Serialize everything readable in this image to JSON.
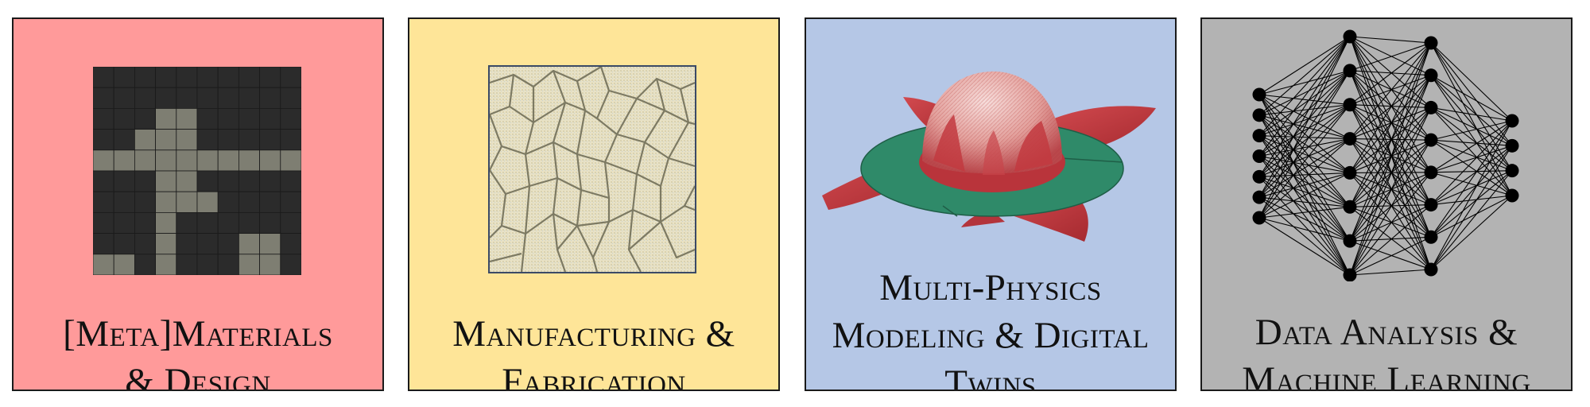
{
  "panels": [
    {
      "id": "meta-materials",
      "bg": "#ff9a9a",
      "caption": [
        "[Meta]Materials",
        "& Design"
      ],
      "icon": "pixel-grid-metamaterial-icon"
    },
    {
      "id": "manufacturing",
      "bg": "#fee598",
      "caption": [
        "Manufacturing &",
        "Fabrication"
      ],
      "icon": "voronoi-fabrication-texture-icon"
    },
    {
      "id": "multiphysics",
      "bg": "#b5c7e6",
      "caption": [
        "Multi-Physics",
        "Modeling & Digital",
        "Twins"
      ],
      "icon": "dome-simulation-icon"
    },
    {
      "id": "data-analysis",
      "bg": "#b3b3b3",
      "caption": [
        "Data Analysis &",
        "Machine Learning"
      ],
      "icon": "neural-network-icon"
    }
  ],
  "colors": {
    "grid_dark": "#2b2b2b",
    "grid_light": "#7e7e72",
    "green_ring": "#2f8a69",
    "red_sheet": "#c2333a",
    "dome": "#e6a8a4"
  }
}
